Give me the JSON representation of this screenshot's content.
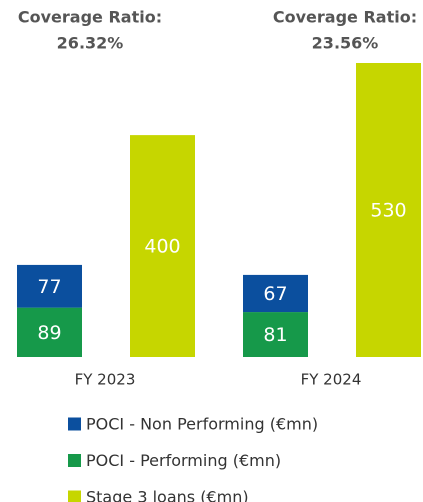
{
  "chart_data": {
    "type": "bar",
    "categories": [
      "FY 2023",
      "FY 2024"
    ],
    "series": [
      {
        "name": "POCI - Non Performing (€mn)",
        "color": "#0b4f9e",
        "stack": "POCI",
        "values": [
          77,
          67
        ]
      },
      {
        "name": "POCI - Performing (€mn)",
        "color": "#16994a",
        "stack": "POCI",
        "values": [
          89,
          81
        ]
      },
      {
        "name": "Stage 3 loans (€mn)",
        "color": "#c6d600",
        "stack": "Stage 3",
        "values": [
          400,
          530
        ]
      }
    ],
    "coverage_ratio": {
      "label": "Coverage Ratio:",
      "values": [
        26.32,
        23.56
      ],
      "value_labels": [
        "26.32%",
        "23.56%"
      ]
    },
    "legend": "bottom"
  }
}
